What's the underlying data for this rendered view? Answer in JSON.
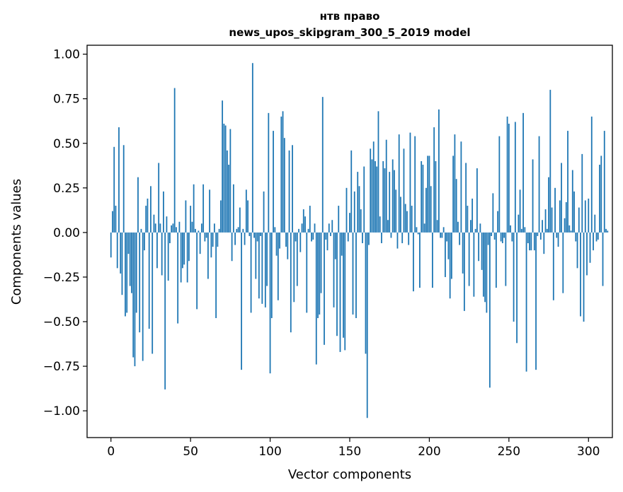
{
  "chart_data": {
    "type": "bar",
    "title_line1": "нтв право",
    "title_line2": "news_upos_skipgram_300_5_2019 model",
    "xlabel": "Vector components",
    "ylabel": "Components values",
    "xlim": [
      -15,
      315
    ],
    "ylim": [
      -1.15,
      1.05
    ],
    "xticks": [
      0,
      50,
      100,
      150,
      200,
      250,
      300
    ],
    "yticks": [
      -1.0,
      -0.75,
      -0.5,
      -0.25,
      0.0,
      0.25,
      0.5,
      0.75,
      1.0
    ],
    "xtick_labels": [
      "0",
      "50",
      "100",
      "150",
      "200",
      "250",
      "300"
    ],
    "ytick_labels": [
      "−1.00",
      "−0.75",
      "−0.50",
      "−0.25",
      "0.00",
      "0.25",
      "0.50",
      "0.75",
      "1.00"
    ],
    "bar_color": "#1f77b4",
    "values": [
      -0.14,
      0.12,
      0.48,
      0.15,
      -0.2,
      0.59,
      -0.23,
      -0.35,
      0.49,
      -0.47,
      -0.45,
      -0.12,
      -0.3,
      -0.34,
      -0.7,
      -0.75,
      -0.45,
      0.31,
      -0.56,
      0.02,
      -0.72,
      -0.1,
      0.15,
      0.19,
      -0.54,
      0.26,
      -0.68,
      0.1,
      0.05,
      -0.2,
      0.39,
      0.05,
      -0.24,
      0.23,
      -0.88,
      0.09,
      -0.27,
      -0.06,
      0.04,
      0.05,
      0.81,
      0.03,
      -0.51,
      0.06,
      -0.28,
      -0.2,
      -0.18,
      0.18,
      -0.28,
      -0.16,
      0.15,
      0.06,
      0.27,
      0.02,
      -0.43,
      0.01,
      -0.12,
      0.05,
      0.27,
      -0.05,
      -0.03,
      -0.26,
      0.24,
      -0.14,
      -0.08,
      0.05,
      -0.48,
      -0.08,
      0.02,
      0.18,
      0.74,
      0.61,
      0.6,
      0.46,
      0.38,
      0.58,
      -0.16,
      0.27,
      -0.07,
      0.02,
      0.03,
      0.14,
      -0.77,
      0.02,
      -0.07,
      0.24,
      0.18,
      -0.02,
      -0.45,
      0.95,
      -0.03,
      -0.26,
      -0.05,
      -0.37,
      -0.02,
      -0.4,
      0.23,
      -0.42,
      -0.3,
      0.67,
      -0.79,
      -0.48,
      0.57,
      0.03,
      -0.13,
      -0.38,
      -0.09,
      0.65,
      0.68,
      0.53,
      -0.08,
      -0.15,
      0.46,
      -0.56,
      0.49,
      -0.39,
      -0.05,
      -0.3,
      0.02,
      -0.11,
      0.05,
      0.13,
      0.09,
      -0.45,
      0.02,
      0.15,
      -0.05,
      -0.04,
      0.05,
      -0.74,
      -0.48,
      -0.46,
      -0.34,
      0.76,
      -0.63,
      -0.04,
      -0.1,
      0.05,
      -0.02,
      0.07,
      -0.42,
      -0.15,
      -0.58,
      0.15,
      -0.67,
      -0.13,
      -0.59,
      -0.66,
      0.25,
      -0.05,
      0.11,
      0.46,
      -0.46,
      0.23,
      -0.48,
      0.34,
      0.26,
      0.13,
      -0.06,
      0.37,
      -0.68,
      -1.04,
      -0.07,
      0.47,
      0.41,
      0.51,
      0.4,
      0.37,
      0.68,
      0.09,
      -0.06,
      0.4,
      0.36,
      0.52,
      0.07,
      0.34,
      -0.03,
      0.41,
      0.35,
      0.24,
      -0.09,
      0.55,
      0.2,
      -0.06,
      0.47,
      0.16,
      0.12,
      -0.07,
      0.56,
      0.15,
      -0.33,
      0.54,
      0.03,
      -0.01,
      -0.31,
      0.4,
      0.38,
      0.05,
      0.25,
      0.43,
      0.43,
      0.26,
      -0.31,
      0.59,
      0.4,
      0.07,
      0.69,
      -0.03,
      -0.03,
      0.03,
      -0.25,
      -0.05,
      -0.15,
      -0.37,
      -0.26,
      0.43,
      0.55,
      0.3,
      0.06,
      -0.07,
      0.51,
      -0.23,
      -0.44,
      0.39,
      0.15,
      -0.3,
      0.07,
      0.19,
      -0.36,
      0.02,
      0.36,
      -0.16,
      0.05,
      -0.21,
      -0.36,
      -0.39,
      -0.45,
      -0.07,
      -0.87,
      -0.02,
      0.22,
      -0.04,
      -0.31,
      0.12,
      0.54,
      -0.05,
      -0.06,
      -0.03,
      -0.3,
      0.65,
      0.61,
      0.04,
      -0.05,
      -0.5,
      0.62,
      -0.62,
      0.1,
      0.24,
      0.02,
      0.67,
      0.03,
      -0.78,
      -0.06,
      -0.1,
      -0.1,
      0.41,
      -0.1,
      -0.77,
      -0.02,
      0.54,
      -0.04,
      0.07,
      -0.12,
      0.13,
      0.02,
      0.31,
      0.8,
      0.14,
      -0.38,
      0.25,
      -0.03,
      -0.08,
      0.18,
      0.39,
      -0.34,
      0.08,
      0.17,
      0.57,
      0.04,
      0.01,
      0.35,
      0.23,
      -0.05,
      -0.2,
      0.14,
      -0.47,
      0.44,
      -0.5,
      0.18,
      -0.24,
      0.19,
      -0.17,
      0.65,
      -0.1,
      0.1,
      -0.05,
      -0.04,
      0.38,
      0.43,
      -0.3,
      0.57,
      0.02,
      0.01
    ]
  }
}
